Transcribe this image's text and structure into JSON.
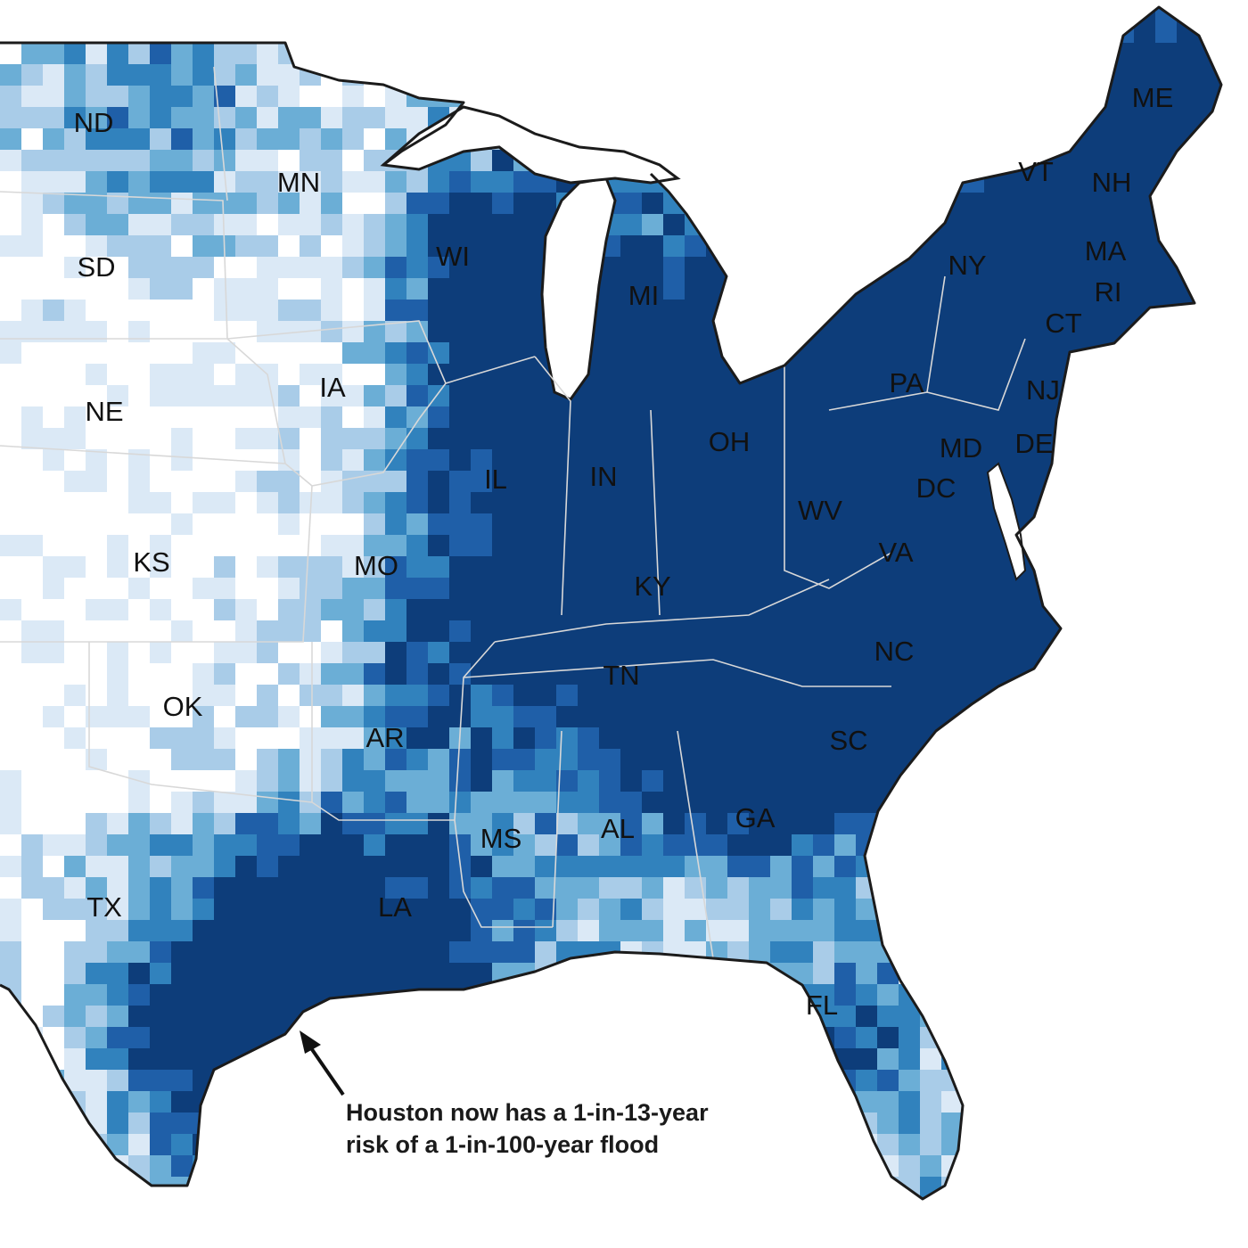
{
  "map": {
    "state_labels": [
      "ND",
      "MN",
      "SD",
      "WI",
      "MI",
      "ME",
      "VT",
      "NH",
      "MA",
      "RI",
      "NY",
      "CT",
      "PA",
      "NJ",
      "IA",
      "NE",
      "OH",
      "IL",
      "IN",
      "MD",
      "DE",
      "DC",
      "WV",
      "KS",
      "MO",
      "VA",
      "KY",
      "NC",
      "TN",
      "OK",
      "AR",
      "SC",
      "GA",
      "AL",
      "MS",
      "TX",
      "LA",
      "FL"
    ],
    "annotation": {
      "line1": "Houston now has a 1-in-13-year",
      "line2": "risk of a 1-in-100-year flood"
    },
    "colors": {
      "water": "#ffffff",
      "outline": "#1b1b1b",
      "risk_scale": [
        "#ffffff",
        "#dbe9f6",
        "#a9cce8",
        "#6baed6",
        "#3182bd",
        "#1f5fa8",
        "#0d3d7a"
      ]
    }
  }
}
